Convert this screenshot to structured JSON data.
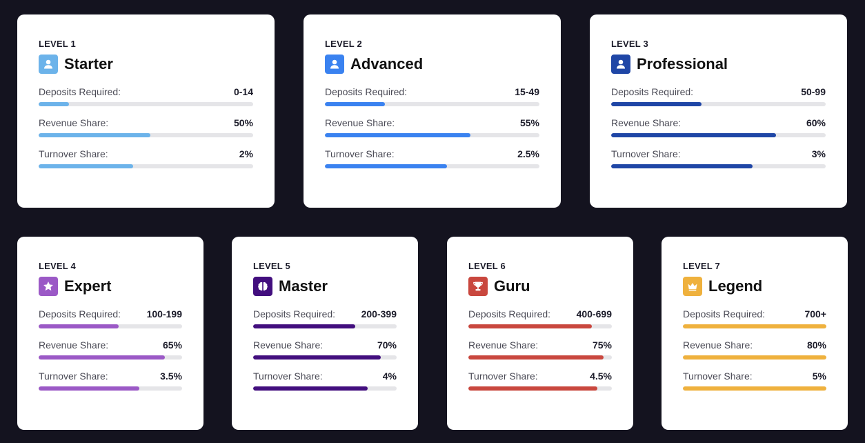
{
  "tiers": [
    {
      "level_label": "LEVEL 1",
      "name": "Starter",
      "icon": "user-icon",
      "color": "#6cb3ea",
      "metrics": [
        {
          "label": "Deposits Required:",
          "value": "0-14",
          "fill": 0.14
        },
        {
          "label": "Revenue Share:",
          "value": "50%",
          "fill": 0.52
        },
        {
          "label": "Turnover Share:",
          "value": "2%",
          "fill": 0.44
        }
      ]
    },
    {
      "level_label": "LEVEL 2",
      "name": "Advanced",
      "icon": "user-icon",
      "color": "#3a82f0",
      "metrics": [
        {
          "label": "Deposits Required:",
          "value": "15-49",
          "fill": 0.28
        },
        {
          "label": "Revenue Share:",
          "value": "55%",
          "fill": 0.68
        },
        {
          "label": "Turnover Share:",
          "value": "2.5%",
          "fill": 0.57
        }
      ]
    },
    {
      "level_label": "LEVEL 3",
      "name": "Professional",
      "icon": "user-icon",
      "color": "#1f46a6",
      "metrics": [
        {
          "label": "Deposits Required:",
          "value": "50-99",
          "fill": 0.42
        },
        {
          "label": "Revenue Share:",
          "value": "60%",
          "fill": 0.77
        },
        {
          "label": "Turnover Share:",
          "value": "3%",
          "fill": 0.66
        }
      ]
    },
    {
      "level_label": "LEVEL 4",
      "name": "Expert",
      "icon": "star-icon",
      "color": "#9b59c6",
      "metrics": [
        {
          "label": "Deposits Required:",
          "value": "100-199",
          "fill": 0.56
        },
        {
          "label": "Revenue Share:",
          "value": "65%",
          "fill": 0.88
        },
        {
          "label": "Turnover Share:",
          "value": "3.5%",
          "fill": 0.7
        }
      ]
    },
    {
      "level_label": "LEVEL 5",
      "name": "Master",
      "icon": "brain-icon",
      "color": "#420e7e",
      "metrics": [
        {
          "label": "Deposits Required:",
          "value": "200-399",
          "fill": 0.71
        },
        {
          "label": "Revenue Share:",
          "value": "70%",
          "fill": 0.89
        },
        {
          "label": "Turnover Share:",
          "value": "4%",
          "fill": 0.8
        }
      ]
    },
    {
      "level_label": "LEVEL 6",
      "name": "Guru",
      "icon": "trophy-icon",
      "color": "#c9473e",
      "metrics": [
        {
          "label": "Deposits Required:",
          "value": "400-699",
          "fill": 0.86
        },
        {
          "label": "Revenue Share:",
          "value": "75%",
          "fill": 0.94
        },
        {
          "label": "Turnover Share:",
          "value": "4.5%",
          "fill": 0.9
        }
      ]
    },
    {
      "level_label": "LEVEL 7",
      "name": "Legend",
      "icon": "crown-icon",
      "color": "#efb13d",
      "metrics": [
        {
          "label": "Deposits Required:",
          "value": "700+",
          "fill": 1.0
        },
        {
          "label": "Revenue Share:",
          "value": "80%",
          "fill": 1.0
        },
        {
          "label": "Turnover Share:",
          "value": "5%",
          "fill": 1.0
        }
      ]
    }
  ]
}
